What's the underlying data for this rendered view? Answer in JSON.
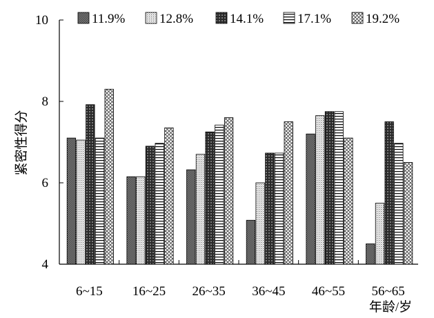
{
  "chart_data": {
    "type": "bar",
    "categories": [
      "6~15",
      "16~25",
      "26~35",
      "36~45",
      "46~55",
      "56~65"
    ],
    "series": [
      {
        "name": "11.9%",
        "values": [
          7.1,
          6.15,
          6.32,
          5.08,
          7.2,
          4.5
        ]
      },
      {
        "name": "12.8%",
        "values": [
          7.05,
          6.15,
          6.7,
          6.0,
          7.65,
          5.5
        ]
      },
      {
        "name": "14.1%",
        "values": [
          7.92,
          6.9,
          7.25,
          6.73,
          7.75,
          7.5
        ]
      },
      {
        "name": "17.1%",
        "values": [
          7.1,
          6.97,
          7.42,
          6.73,
          7.75,
          6.97
        ]
      },
      {
        "name": "19.2%",
        "values": [
          8.3,
          7.35,
          7.6,
          7.5,
          7.1,
          6.5
        ]
      }
    ],
    "title": "",
    "xlabel": "年龄/岁",
    "ylabel": "紧密性得分",
    "ylim": [
      4,
      10
    ],
    "yticks": [
      "4",
      "6",
      "8",
      "10"
    ],
    "grid": false,
    "legend_position": "top",
    "patterns": [
      "dense-dots",
      "light-dots",
      "dark-grid",
      "horizontal-lines",
      "crosshatch"
    ]
  }
}
